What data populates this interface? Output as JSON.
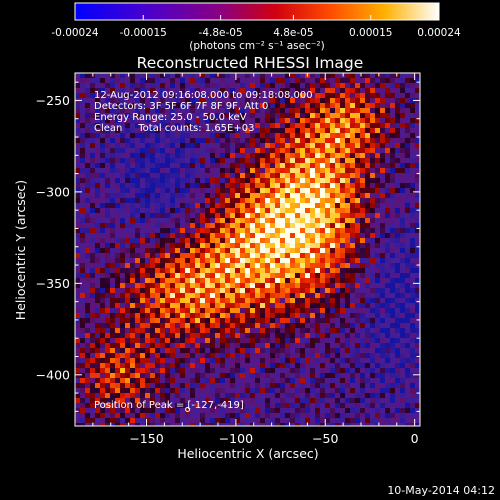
{
  "colorbar": {
    "tick_labels": [
      "-0.00024",
      "-0.00015",
      "-4.8e-05",
      "4.8e-05",
      "0.00015",
      "0.00024"
    ],
    "tick_values": [
      -0.00024,
      -0.00015,
      -4.8e-05,
      4.8e-05,
      0.00015,
      0.00024
    ],
    "range": [
      -0.00024,
      0.00024
    ],
    "unit_label": "(photons cm⁻² s⁻¹ asec⁻²)",
    "colors": [
      "#0000ff",
      "#4400cc",
      "#880088",
      "#cc0000",
      "#ff5500",
      "#ffbb00",
      "#ffffff"
    ]
  },
  "chart_data": {
    "type": "heatmap",
    "title": "Reconstructed RHESSI Image",
    "xlabel": "Heliocentric X (arcsec)",
    "ylabel": "Heliocentric Y (arcsec)",
    "xlim": [
      -190,
      3
    ],
    "ylim": [
      -428,
      -235
    ],
    "x_ticks": [
      -150,
      -100,
      -50,
      0
    ],
    "y_ticks": [
      -400,
      -350,
      -300,
      -250
    ],
    "x_tick_labels": [
      "−150",
      "−100",
      "−50",
      "0"
    ],
    "y_tick_labels": [
      "−400",
      "−350",
      "−300",
      "−250"
    ],
    "annotations": [
      "12-Aug-2012 09:16:08.000 to 09:18:08.000",
      "Detectors: 3F 5F 6F 7F 8F 9F, Att 0",
      "Energy Range: 25.0 - 50.0 keV",
      "Clean     Total counts: 1.65E+03"
    ],
    "peak_label": "Position of Peak = [-127,-419]",
    "peak": [
      -127,
      -419
    ]
  },
  "footer_date": "10-May-2014 04:12"
}
